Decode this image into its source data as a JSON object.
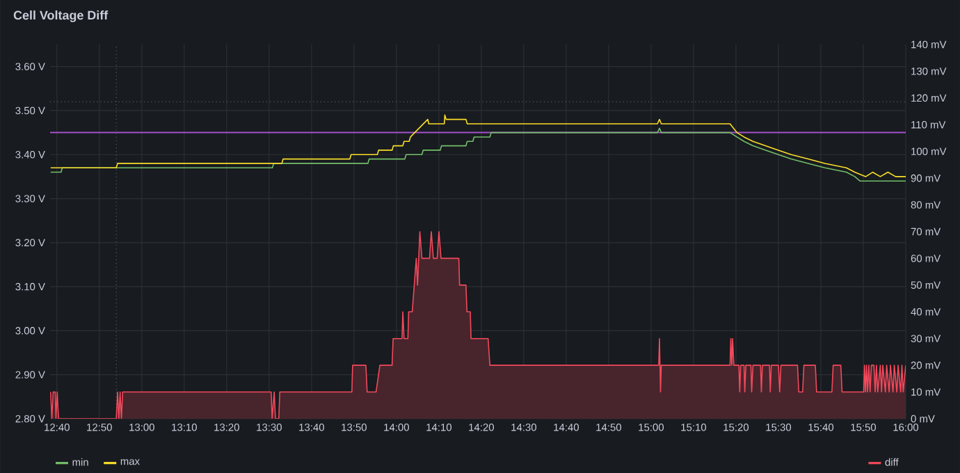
{
  "chart_data": {
    "type": "line",
    "title": "Cell Voltage Diff",
    "xlim": [
      12.64,
      16.0
    ],
    "xticks": [
      {
        "value": 12.6667,
        "label": "12:40"
      },
      {
        "value": 12.8333,
        "label": "12:50"
      },
      {
        "value": 13.0,
        "label": "13:00"
      },
      {
        "value": 13.1667,
        "label": "13:10"
      },
      {
        "value": 13.3333,
        "label": "13:20"
      },
      {
        "value": 13.5,
        "label": "13:30"
      },
      {
        "value": 13.6667,
        "label": "13:40"
      },
      {
        "value": 13.8333,
        "label": "13:50"
      },
      {
        "value": 14.0,
        "label": "14:00"
      },
      {
        "value": 14.1667,
        "label": "14:10"
      },
      {
        "value": 14.3333,
        "label": "14:20"
      },
      {
        "value": 14.5,
        "label": "14:30"
      },
      {
        "value": 14.6667,
        "label": "14:40"
      },
      {
        "value": 14.8333,
        "label": "14:50"
      },
      {
        "value": 15.0,
        "label": "15:00"
      },
      {
        "value": 15.1667,
        "label": "15:10"
      },
      {
        "value": 15.3333,
        "label": "15:20"
      },
      {
        "value": 15.5,
        "label": "15:30"
      },
      {
        "value": 15.6667,
        "label": "15:40"
      },
      {
        "value": 15.8333,
        "label": "15:50"
      },
      {
        "value": 16.0,
        "label": "16:00"
      }
    ],
    "ylim": [
      2.8,
      3.65
    ],
    "yticks": [
      {
        "value": 2.8,
        "label": "2.80 V"
      },
      {
        "value": 2.9,
        "label": "2.90 V"
      },
      {
        "value": 3.0,
        "label": "3.00 V"
      },
      {
        "value": 3.1,
        "label": "3.10 V"
      },
      {
        "value": 3.2,
        "label": "3.20 V"
      },
      {
        "value": 3.3,
        "label": "3.30 V"
      },
      {
        "value": 3.4,
        "label": "3.40 V"
      },
      {
        "value": 3.5,
        "label": "3.50 V"
      },
      {
        "value": 3.6,
        "label": "3.60 V"
      }
    ],
    "y2lim": [
      0,
      140
    ],
    "y2ticks": [
      {
        "value": 0,
        "label": "0 mV"
      },
      {
        "value": 10,
        "label": "10 mV"
      },
      {
        "value": 20,
        "label": "20 mV"
      },
      {
        "value": 30,
        "label": "30 mV"
      },
      {
        "value": 40,
        "label": "40 mV"
      },
      {
        "value": 50,
        "label": "50 mV"
      },
      {
        "value": 60,
        "label": "60 mV"
      },
      {
        "value": 70,
        "label": "70 mV"
      },
      {
        "value": 80,
        "label": "80 mV"
      },
      {
        "value": 90,
        "label": "90 mV"
      },
      {
        "value": 100,
        "label": "100 mV"
      },
      {
        "value": 110,
        "label": "110 mV"
      },
      {
        "value": 120,
        "label": "120 mV"
      },
      {
        "value": 130,
        "label": "130 mV"
      },
      {
        "value": 140,
        "label": "140 mV"
      }
    ],
    "grid": true,
    "legend": "bottom",
    "marker": "none",
    "ref_lines": [
      {
        "axis": "y",
        "value": 3.45,
        "color": "#a352cc"
      },
      {
        "axis": "y",
        "value": 3.52,
        "color": "#5a5f66",
        "line_style": "dotted"
      },
      {
        "axis": "x",
        "value": 12.9,
        "color": "#5a5f66",
        "line_style": "dotted"
      }
    ],
    "series": [
      {
        "name": "diff",
        "type": "area",
        "axis": "y2",
        "color": "#f2495c",
        "x": [
          12.642,
          12.647,
          12.652,
          12.66,
          12.663,
          12.668,
          12.673,
          12.9,
          12.905,
          12.91,
          12.915,
          12.92,
          12.925,
          13.508,
          13.512,
          13.52,
          13.525,
          13.538,
          13.542,
          13.825,
          13.828,
          13.88,
          13.885,
          13.92,
          13.935,
          13.983,
          13.987,
          14.022,
          14.025,
          14.03,
          14.045,
          14.048,
          14.062,
          14.07,
          14.078,
          14.083,
          14.092,
          14.1,
          14.13,
          14.137,
          14.145,
          14.16,
          14.167,
          14.175,
          14.245,
          14.248,
          14.273,
          14.277,
          14.29,
          14.293,
          14.36,
          14.367,
          15.03,
          15.033,
          15.037,
          15.04,
          15.31,
          15.313,
          15.317,
          15.32,
          15.325,
          15.345,
          15.348,
          15.352,
          15.365,
          15.368,
          15.372,
          15.392,
          15.395,
          15.4,
          15.43,
          15.433,
          15.437,
          15.465,
          15.468,
          15.472,
          15.5,
          15.505,
          15.51,
          15.575,
          15.58,
          15.595,
          15.6,
          15.645,
          15.65,
          15.71,
          15.715,
          15.745,
          15.75,
          15.835,
          15.838,
          15.842,
          15.846,
          15.85,
          15.855,
          15.86,
          15.865,
          15.875,
          15.88,
          15.885,
          15.89,
          15.9,
          15.905,
          15.91,
          15.92,
          15.925,
          15.935,
          15.94,
          15.95,
          15.955,
          15.965,
          15.97,
          15.98,
          15.985,
          15.99,
          16.0
        ],
        "values": [
          10,
          0,
          10,
          10,
          0,
          10,
          0,
          0,
          10,
          0,
          10,
          0,
          10,
          10,
          0,
          10,
          0,
          0,
          10,
          10,
          20,
          20,
          10,
          10,
          20,
          20,
          30,
          30,
          40,
          30,
          30,
          40,
          40,
          50,
          60,
          50,
          70,
          60,
          60,
          70,
          60,
          60,
          70,
          60,
          60,
          50,
          50,
          40,
          40,
          30,
          30,
          20,
          20,
          30,
          10,
          20,
          20,
          30,
          20,
          30,
          20,
          20,
          10,
          20,
          20,
          10,
          20,
          20,
          10,
          20,
          20,
          10,
          20,
          20,
          10,
          20,
          20,
          10,
          20,
          20,
          10,
          10,
          20,
          20,
          10,
          10,
          20,
          20,
          10,
          10,
          20,
          10,
          20,
          10,
          20,
          10,
          20,
          20,
          10,
          20,
          10,
          20,
          10,
          20,
          10,
          20,
          10,
          20,
          10,
          20,
          10,
          20,
          10,
          20,
          10,
          20
        ]
      },
      {
        "name": "min",
        "color": "#73bf69",
        "x": [
          12.642,
          12.683,
          12.688,
          13.513,
          13.518,
          13.888,
          13.893,
          14.033,
          14.038,
          14.1,
          14.105,
          14.172,
          14.177,
          14.273,
          14.278,
          14.3,
          14.305,
          14.367,
          14.372,
          15.025,
          15.033,
          15.04,
          15.31,
          15.337,
          15.365,
          15.4,
          15.45,
          15.5,
          15.55,
          15.617,
          15.683,
          15.767,
          15.8,
          15.82,
          16.0
        ],
        "values": [
          3.36,
          3.36,
          3.37,
          3.37,
          3.38,
          3.38,
          3.39,
          3.39,
          3.4,
          3.4,
          3.41,
          3.41,
          3.42,
          3.42,
          3.43,
          3.43,
          3.44,
          3.44,
          3.45,
          3.45,
          3.46,
          3.45,
          3.45,
          3.44,
          3.43,
          3.42,
          3.41,
          3.4,
          3.39,
          3.38,
          3.37,
          3.36,
          3.35,
          3.34,
          3.34
        ]
      },
      {
        "name": "max",
        "color": "#fade2a",
        "x": [
          12.642,
          12.9,
          12.905,
          13.55,
          13.555,
          13.817,
          13.822,
          13.925,
          13.93,
          13.983,
          13.988,
          14.025,
          14.03,
          14.05,
          14.055,
          14.123,
          14.127,
          14.188,
          14.19,
          14.195,
          14.273,
          14.278,
          15.025,
          15.033,
          15.04,
          15.31,
          15.337,
          15.365,
          15.4,
          15.45,
          15.5,
          15.55,
          15.617,
          15.683,
          15.767,
          15.8,
          15.843,
          15.87,
          15.9,
          15.93,
          15.96,
          16.0
        ],
        "values": [
          3.37,
          3.37,
          3.38,
          3.38,
          3.39,
          3.39,
          3.4,
          3.4,
          3.41,
          3.41,
          3.42,
          3.42,
          3.43,
          3.43,
          3.44,
          3.48,
          3.47,
          3.47,
          3.49,
          3.48,
          3.48,
          3.47,
          3.47,
          3.48,
          3.47,
          3.47,
          3.45,
          3.44,
          3.43,
          3.42,
          3.41,
          3.4,
          3.39,
          3.38,
          3.37,
          3.36,
          3.35,
          3.36,
          3.35,
          3.36,
          3.35,
          3.35
        ]
      }
    ]
  }
}
